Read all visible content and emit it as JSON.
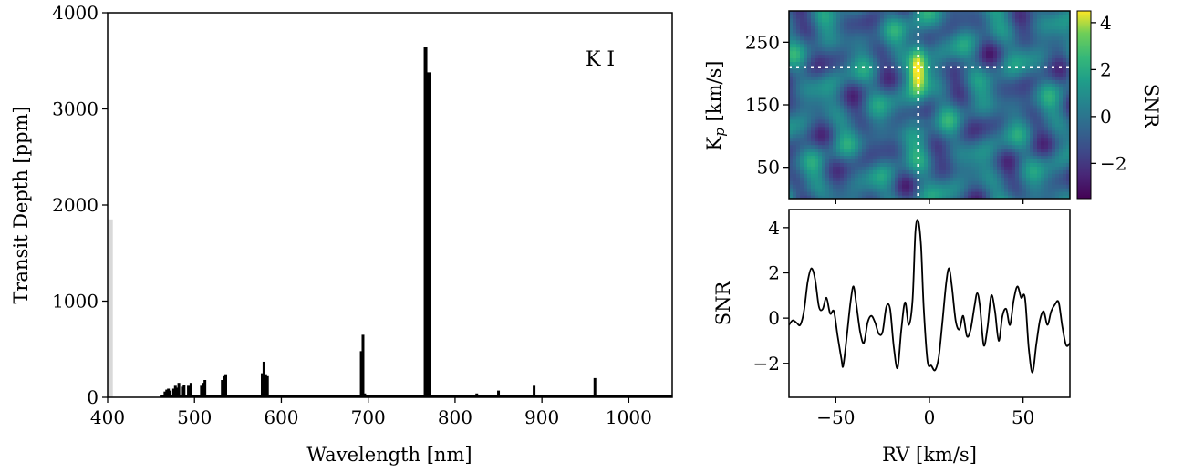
{
  "chart_data": [
    {
      "type": "bar",
      "panel": "transmission-spectrum",
      "xlabel": "Wavelength [nm]",
      "ylabel": "Transit Depth [ppm]",
      "xlim": [
        400,
        1050
      ],
      "ylim": [
        0,
        4000
      ],
      "xticks": [
        "400",
        "500",
        "600",
        "700",
        "800",
        "900",
        "1000"
      ],
      "yticks": [
        "0",
        "1000",
        "2000",
        "3000",
        "4000"
      ],
      "annotation": "K I",
      "grey_band": {
        "x0": 400,
        "x1": 406,
        "value": 1850
      },
      "lines": [
        {
          "x": 466,
          "y": 60
        },
        {
          "x": 468,
          "y": 80
        },
        {
          "x": 470,
          "y": 90
        },
        {
          "x": 472,
          "y": 70
        },
        {
          "x": 476,
          "y": 90
        },
        {
          "x": 478,
          "y": 120
        },
        {
          "x": 480,
          "y": 100
        },
        {
          "x": 482,
          "y": 150
        },
        {
          "x": 486,
          "y": 110
        },
        {
          "x": 488,
          "y": 130
        },
        {
          "x": 493,
          "y": 120
        },
        {
          "x": 496,
          "y": 150
        },
        {
          "x": 508,
          "y": 120
        },
        {
          "x": 510,
          "y": 150
        },
        {
          "x": 512,
          "y": 180
        },
        {
          "x": 532,
          "y": 180
        },
        {
          "x": 534,
          "y": 220
        },
        {
          "x": 536,
          "y": 240
        },
        {
          "x": 578,
          "y": 250
        },
        {
          "x": 580,
          "y": 370
        },
        {
          "x": 582,
          "y": 240
        },
        {
          "x": 584,
          "y": 220
        },
        {
          "x": 692,
          "y": 480
        },
        {
          "x": 694,
          "y": 650
        },
        {
          "x": 696,
          "y": 40
        },
        {
          "x": 766,
          "y": 3640
        },
        {
          "x": 770,
          "y": 3380
        },
        {
          "x": 790,
          "y": 15
        },
        {
          "x": 808,
          "y": 25
        },
        {
          "x": 825,
          "y": 40
        },
        {
          "x": 850,
          "y": 70
        },
        {
          "x": 891,
          "y": 120
        },
        {
          "x": 961,
          "y": 200
        },
        {
          "x": 1000,
          "y": 10
        },
        {
          "x": 1049,
          "y": 20
        }
      ]
    },
    {
      "type": "heatmap",
      "panel": "kp-rv-map",
      "ylabel": "K_p [km/s]",
      "xlim": [
        -75,
        75
      ],
      "ylim": [
        0,
        300
      ],
      "yticks": [
        "50",
        "150",
        "250"
      ],
      "colorbar": {
        "label": "SNR",
        "range": [
          -3.5,
          4.5
        ],
        "ticks": [
          "4",
          "2",
          "0",
          "−2"
        ],
        "colormap": "viridis"
      },
      "peak": {
        "rv": -6,
        "kp": 210,
        "snr": 4.3
      },
      "crosshair": {
        "rv": -6,
        "kp": 210
      }
    },
    {
      "type": "line",
      "panel": "snr-vs-rv",
      "xlabel": "RV [km/s]",
      "ylabel": "SNR",
      "xlim": [
        -75,
        75
      ],
      "ylim": [
        -3.5,
        4.8
      ],
      "xticks": [
        "−50",
        "0",
        "50"
      ],
      "yticks": [
        "4",
        "2",
        "0",
        "−2"
      ],
      "points": [
        [
          -75,
          -0.3
        ],
        [
          -73,
          -0.1
        ],
        [
          -71,
          -0.2
        ],
        [
          -69,
          -0.3
        ],
        [
          -67,
          0.3
        ],
        [
          -65,
          1.6
        ],
        [
          -63,
          2.2
        ],
        [
          -61,
          1.7
        ],
        [
          -59,
          0.5
        ],
        [
          -57,
          0.4
        ],
        [
          -55,
          0.9
        ],
        [
          -53,
          0.2
        ],
        [
          -51,
          0.3
        ],
        [
          -49,
          -0.8
        ],
        [
          -47,
          -1.8
        ],
        [
          -46,
          -2.1
        ],
        [
          -44,
          -0.7
        ],
        [
          -42,
          0.8
        ],
        [
          -40.5,
          1.4
        ],
        [
          -39,
          0.6
        ],
        [
          -37,
          -0.6
        ],
        [
          -35,
          -1.1
        ],
        [
          -33,
          -0.2
        ],
        [
          -31,
          0.1
        ],
        [
          -29,
          -0.2
        ],
        [
          -27,
          -0.7
        ],
        [
          -25,
          -0.6
        ],
        [
          -23,
          0.5
        ],
        [
          -21,
          0.4
        ],
        [
          -19,
          -1.3
        ],
        [
          -17,
          -2.2
        ],
        [
          -15,
          -0.5
        ],
        [
          -13,
          0.7
        ],
        [
          -11,
          -0.3
        ],
        [
          -9,
          0.8
        ],
        [
          -7.5,
          3.8
        ],
        [
          -6,
          4.3
        ],
        [
          -4.5,
          3.2
        ],
        [
          -3,
          0.4
        ],
        [
          -1,
          -1.9
        ],
        [
          1,
          -2.1
        ],
        [
          3,
          -2.3
        ],
        [
          5,
          -1.7
        ],
        [
          7,
          -0.1
        ],
        [
          9,
          1.6
        ],
        [
          10.5,
          2.2
        ],
        [
          12,
          1.4
        ],
        [
          14,
          -0.1
        ],
        [
          16,
          -0.5
        ],
        [
          18,
          0.1
        ],
        [
          20,
          -0.8
        ],
        [
          22,
          -0.5
        ],
        [
          24,
          0.5
        ],
        [
          25.5,
          1.1
        ],
        [
          27,
          0.5
        ],
        [
          29,
          -1.2
        ],
        [
          31,
          -0.4
        ],
        [
          33,
          1.0
        ],
        [
          35,
          0.3
        ],
        [
          37,
          -1.0
        ],
        [
          39,
          0.1
        ],
        [
          41,
          0.4
        ],
        [
          43,
          -0.3
        ],
        [
          45,
          0.8
        ],
        [
          47,
          1.4
        ],
        [
          49,
          0.9
        ],
        [
          51,
          0.9
        ],
        [
          53,
          -1.3
        ],
        [
          55,
          -2.4
        ],
        [
          57,
          -1.2
        ],
        [
          59,
          -0.1
        ],
        [
          61,
          0.3
        ],
        [
          63,
          -0.3
        ],
        [
          65,
          0.3
        ],
        [
          67,
          0.6
        ],
        [
          69,
          0.7
        ],
        [
          71,
          -0.4
        ],
        [
          73,
          -1.2
        ],
        [
          75,
          -1.1
        ]
      ]
    }
  ]
}
